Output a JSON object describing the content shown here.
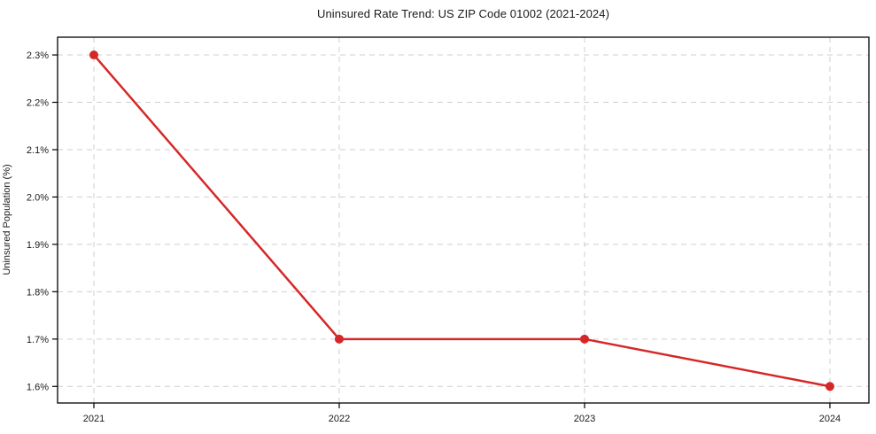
{
  "chart_data": {
    "type": "line",
    "title": "Uninsured Rate Trend: US ZIP Code 01002 (2021-2024)",
    "xlabel": "",
    "ylabel": "Uninsured Population (%)",
    "x": [
      2021,
      2022,
      2023,
      2024
    ],
    "x_tick_labels": [
      "2021",
      "2022",
      "2023",
      "2024"
    ],
    "series": [
      {
        "name": "Uninsured Rate",
        "values": [
          2.3,
          1.7,
          1.7,
          1.6
        ],
        "color": "#d62728",
        "marker": "circle"
      }
    ],
    "y_ticks": [
      1.6,
      1.7,
      1.8,
      1.9,
      2.0,
      2.1,
      2.2,
      2.3
    ],
    "y_tick_labels": [
      "1.6%",
      "1.7%",
      "1.8%",
      "1.9%",
      "2.0%",
      "2.1%",
      "2.2%",
      "2.3%"
    ],
    "ylim": [
      1.565,
      2.3375
    ],
    "xlim": [
      2020.852,
      2024.159
    ],
    "grid": "dashed",
    "grid_color": "#cfcfcf",
    "axis_color": "#000000",
    "background_color": "#ffffff",
    "legend": "none"
  }
}
